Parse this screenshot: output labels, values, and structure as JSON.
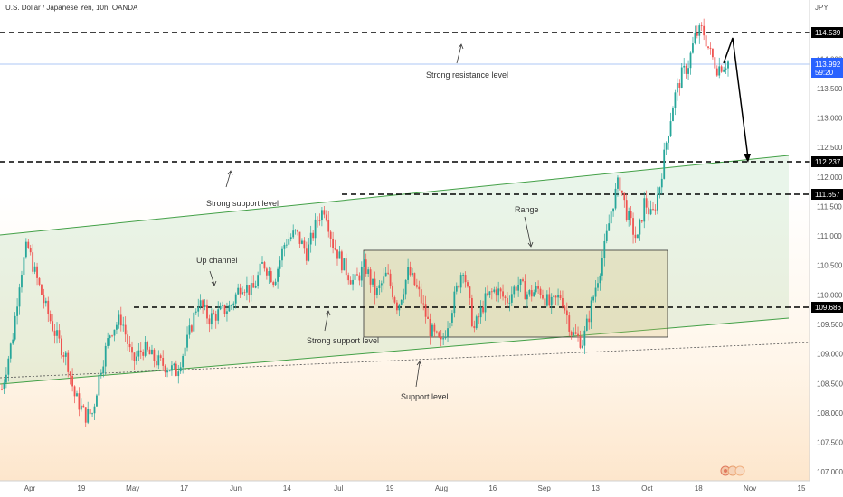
{
  "header": {
    "title": "U.S. Dollar / Japanese Yen, 10h, OANDA",
    "currency": "JPY"
  },
  "colors": {
    "up": "#26a69a",
    "down": "#ef5350",
    "channel": "#4caf50",
    "current": "#2962ff"
  },
  "chart_data": {
    "type": "candlestick",
    "ylim": [
      106.85,
      115.0
    ],
    "y_ticks": [
      "114.000",
      "113.500",
      "113.000",
      "112.500",
      "112.000",
      "111.500",
      "111.000",
      "110.500",
      "110.000",
      "109.500",
      "109.000",
      "108.500",
      "108.000",
      "107.500",
      "107.000"
    ],
    "x_ticks": [
      "Apr",
      "19",
      "May",
      "17",
      "Jun",
      "14",
      "Jul",
      "19",
      "Aug",
      "16",
      "Sep",
      "13",
      "Oct",
      "18",
      "Nov",
      "15"
    ],
    "price_labels": [
      "114.539",
      "113.992",
      "59:20",
      "112.237",
      "111.657",
      "109.686"
    ],
    "annotations": [
      "Strong resistance level",
      "Strong support level",
      "Up channel",
      "Range",
      "Strong support level",
      "Support level"
    ],
    "close_path": [
      [
        0,
        108.4
      ],
      [
        0.015,
        109.3
      ],
      [
        0.025,
        110.3
      ],
      [
        0.035,
        110.85
      ],
      [
        0.045,
        110.4
      ],
      [
        0.06,
        109.8
      ],
      [
        0.075,
        109.3
      ],
      [
        0.09,
        108.9
      ],
      [
        0.1,
        108.3
      ],
      [
        0.115,
        107.95
      ],
      [
        0.125,
        108.0
      ],
      [
        0.135,
        108.7
      ],
      [
        0.15,
        109.4
      ],
      [
        0.165,
        109.6
      ],
      [
        0.18,
        108.85
      ],
      [
        0.195,
        109.1
      ],
      [
        0.21,
        108.9
      ],
      [
        0.225,
        108.8
      ],
      [
        0.24,
        108.7
      ],
      [
        0.255,
        109.2
      ],
      [
        0.27,
        109.9
      ],
      [
        0.285,
        109.6
      ],
      [
        0.3,
        109.7
      ],
      [
        0.315,
        109.8
      ],
      [
        0.33,
        110.2
      ],
      [
        0.345,
        110.05
      ],
      [
        0.36,
        110.55
      ],
      [
        0.375,
        110.25
      ],
      [
        0.39,
        110.9
      ],
      [
        0.405,
        111.05
      ],
      [
        0.42,
        110.7
      ],
      [
        0.435,
        111.3
      ],
      [
        0.445,
        111.5
      ],
      [
        0.455,
        110.9
      ],
      [
        0.47,
        110.5
      ],
      [
        0.485,
        110.2
      ],
      [
        0.5,
        110.5
      ],
      [
        0.515,
        110.0
      ],
      [
        0.53,
        110.35
      ],
      [
        0.545,
        109.8
      ],
      [
        0.56,
        110.4
      ],
      [
        0.575,
        110.0
      ],
      [
        0.59,
        109.4
      ],
      [
        0.605,
        109.15
      ],
      [
        0.62,
        109.8
      ],
      [
        0.635,
        110.5
      ],
      [
        0.65,
        109.4
      ],
      [
        0.665,
        109.9
      ],
      [
        0.68,
        110.1
      ],
      [
        0.695,
        109.9
      ],
      [
        0.71,
        110.2
      ],
      [
        0.725,
        110.0
      ],
      [
        0.74,
        110.1
      ],
      [
        0.755,
        109.8
      ],
      [
        0.77,
        110.0
      ],
      [
        0.785,
        109.35
      ],
      [
        0.8,
        109.2
      ],
      [
        0.815,
        110.0
      ],
      [
        0.83,
        110.8
      ],
      [
        0.84,
        111.5
      ],
      [
        0.85,
        111.95
      ],
      [
        0.86,
        111.4
      ],
      [
        0.875,
        110.9
      ],
      [
        0.885,
        111.6
      ],
      [
        0.895,
        111.3
      ],
      [
        0.905,
        111.8
      ],
      [
        0.915,
        112.6
      ],
      [
        0.925,
        113.3
      ],
      [
        0.935,
        113.7
      ],
      [
        0.945,
        113.9
      ],
      [
        0.955,
        114.4
      ],
      [
        0.965,
        114.5
      ],
      [
        0.975,
        114.1
      ],
      [
        0.985,
        113.85
      ],
      [
        1.0,
        113.95
      ]
    ]
  }
}
